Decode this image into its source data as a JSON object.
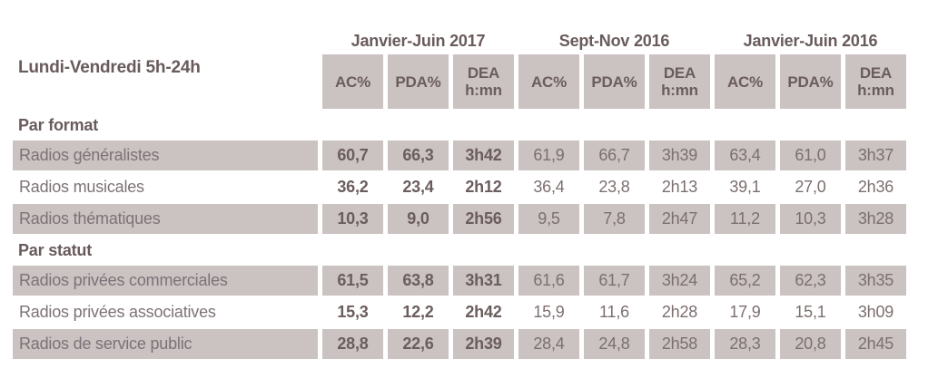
{
  "chart_data": {
    "type": "table",
    "row_header": "Lundi-Vendredi 5h-24h",
    "groups": [
      {
        "label": "Janvier-Juin 2017"
      },
      {
        "label": "Sept-Nov 2016"
      },
      {
        "label": "Janvier-Juin 2016"
      }
    ],
    "measures": [
      {
        "line1": "AC%",
        "line2": ""
      },
      {
        "line1": "PDA%",
        "line2": ""
      },
      {
        "line1": "DEA",
        "line2": "h:mn"
      }
    ],
    "sections": [
      {
        "title": "Par format",
        "rows": [
          {
            "label": "Radios généralistes",
            "values": [
              "60,7",
              "66,3",
              "3h42",
              "61,9",
              "66,7",
              "3h39",
              "63,4",
              "61,0",
              "3h37"
            ]
          },
          {
            "label": "Radios musicales",
            "values": [
              "36,2",
              "23,4",
              "2h12",
              "36,4",
              "23,8",
              "2h13",
              "39,1",
              "27,0",
              "2h36"
            ]
          },
          {
            "label": "Radios thématiques",
            "values": [
              "10,3",
              "9,0",
              "2h56",
              "9,5",
              "7,8",
              "2h47",
              "11,2",
              "10,3",
              "3h28"
            ]
          }
        ]
      },
      {
        "title": "Par statut",
        "rows": [
          {
            "label": "Radios privées commerciales",
            "values": [
              "61,5",
              "63,8",
              "3h31",
              "61,6",
              "61,7",
              "3h24",
              "65,2",
              "62,3",
              "3h35"
            ]
          },
          {
            "label": "Radios privées associatives",
            "values": [
              "15,3",
              "12,2",
              "2h42",
              "15,9",
              "11,6",
              "2h28",
              "17,9",
              "15,1",
              "3h09"
            ]
          },
          {
            "label": "Radios de service public",
            "values": [
              "28,8",
              "22,6",
              "2h39",
              "28,4",
              "24,8",
              "2h58",
              "28,3",
              "20,8",
              "2h45"
            ]
          }
        ]
      }
    ]
  },
  "colors": {
    "shade": "#cbc2c2",
    "text_dark": "#6b5d5d",
    "text_regular": "#7c6f6f",
    "text_label": "#7d7277",
    "text_title": "#695b5b"
  }
}
